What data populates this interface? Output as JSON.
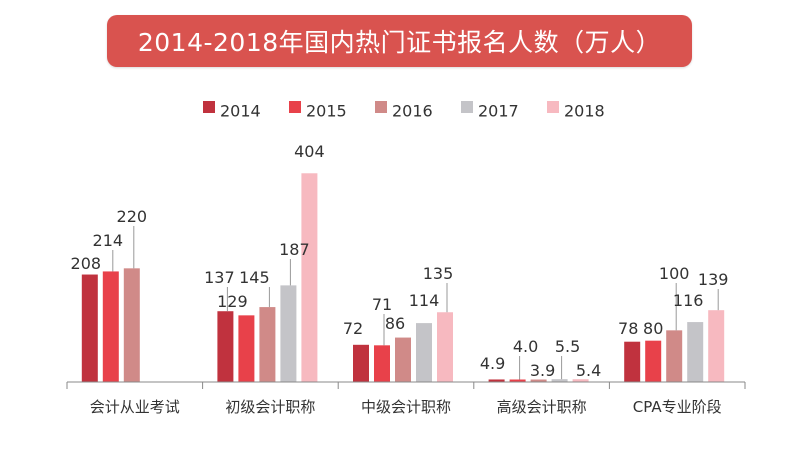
{
  "chart_data": {
    "type": "bar",
    "title": "2014-2018年国内热门证书报名人数（万人）",
    "categories": [
      "会计从业考试",
      "初级会计职称",
      "中级会计职称",
      "高级会计职称",
      "CPA专业阶段"
    ],
    "series": [
      {
        "name": "2014",
        "color": "#c0323e",
        "values": [
          208,
          137,
          72,
          4.9,
          78
        ]
      },
      {
        "name": "2015",
        "color": "#e8414a",
        "values": [
          214,
          129,
          71,
          4.0,
          80
        ]
      },
      {
        "name": "2016",
        "color": "#d08a88",
        "values": [
          220,
          145,
          86,
          3.9,
          100
        ]
      },
      {
        "name": "2017",
        "color": "#c4c4c8",
        "values": [
          null,
          187,
          114,
          5.5,
          116
        ]
      },
      {
        "name": "2018",
        "color": "#f7b9c0",
        "values": [
          null,
          404,
          135,
          5.4,
          139
        ]
      }
    ],
    "ylim": [
      0,
      420
    ],
    "xlabel": "",
    "ylabel": "",
    "legend": "top",
    "grid": false
  },
  "colors": {
    "title_background": "#d9534f",
    "title_text": "#ffffff",
    "axis": "#888888"
  }
}
